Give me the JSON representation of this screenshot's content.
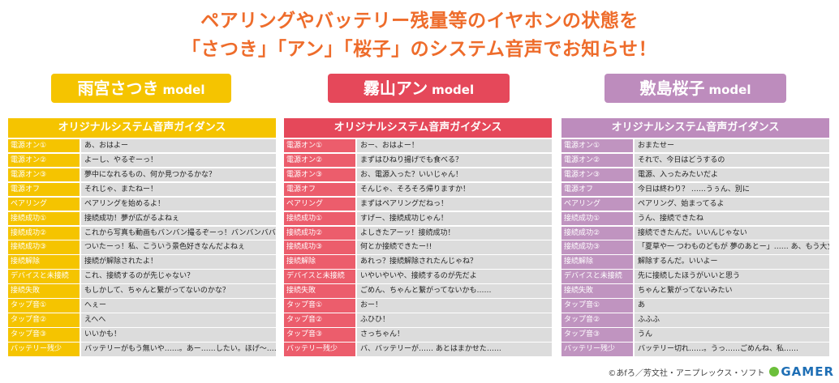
{
  "headline": {
    "line1": "ペアリングやバッテリー残量等のイヤホンの状態を",
    "line2": "「さつき」「アン」「桜子」のシステム音声でお知らせ！"
  },
  "colors": {
    "yellow": "#f5c400",
    "yellow_key": "#f5c400",
    "red": "#e5485a",
    "red_key": "#ec5d6c",
    "purple": "#bd8cbd",
    "purple_key": "#c094c0",
    "headline": "#ee6c2b"
  },
  "models": [
    {
      "name": "雨宮さつき",
      "suffix": "model",
      "table_title": "オリジナルシステム音声ガイダンス",
      "rows": [
        {
          "key": "電源オン①",
          "value": "あ、おはよー"
        },
        {
          "key": "電源オン②",
          "value": "よーし、やるぞーっ！"
        },
        {
          "key": "電源オン③",
          "value": "夢中になれるもの、何か見つかるかな？"
        },
        {
          "key": "電源オフ",
          "value": "それじゃ、またねー！"
        },
        {
          "key": "ペアリング",
          "value": "ペアリングを始めるよ！"
        },
        {
          "key": "接続成功①",
          "value": "接続成功！夢が広がるよねぇ"
        },
        {
          "key": "接続成功②",
          "value": "これから写真も動画もバンバン撮るぞーっ！バンバンババーン！"
        },
        {
          "key": "接続成功③",
          "value": "ついたーっ！私、こういう景色好きなんだよねぇ"
        },
        {
          "key": "接続解除",
          "value": "接続が解除されたよ！"
        },
        {
          "key": "デバイスと未接続",
          "value": "これ、接続するのが先じゃない？"
        },
        {
          "key": "接続失敗",
          "value": "もしかして、ちゃんと繋がってないのかな？"
        },
        {
          "key": "タップ音①",
          "value": "へぇー"
        },
        {
          "key": "タップ音②",
          "value": "えへへ"
        },
        {
          "key": "タップ音③",
          "value": "いいかも！"
        },
        {
          "key": "バッテリー残少",
          "value": "バッテリーがもう無いや……。あー……したい。ほげ〜……"
        }
      ]
    },
    {
      "name": "霧山アン",
      "suffix": "model",
      "table_title": "オリジナルシステム音声ガイダンス",
      "rows": [
        {
          "key": "電源オン①",
          "value": "おー、おはよー！"
        },
        {
          "key": "電源オン②",
          "value": "まずはひねり揚げでも食べる？"
        },
        {
          "key": "電源オン③",
          "value": "お、電源入った？いいじゃん！"
        },
        {
          "key": "電源オフ",
          "value": "そんじゃ、そろそろ帰りますか！"
        },
        {
          "key": "ペアリング",
          "value": "まずはペアリングだねっ！"
        },
        {
          "key": "接続成功①",
          "value": "すげー、接続成功じゃん！"
        },
        {
          "key": "接続成功②",
          "value": "よしきたアーッ！接続成功！"
        },
        {
          "key": "接続成功③",
          "value": "何とか接続できたー!!"
        },
        {
          "key": "接続解除",
          "value": "あれっ？接続解除されたんじゃね？"
        },
        {
          "key": "デバイスと未接続",
          "value": "いやいやいや、接続するのが先だよ"
        },
        {
          "key": "接続失敗",
          "value": "ごめん、ちゃんと繋がってないかも……"
        },
        {
          "key": "タップ音①",
          "value": "おー！"
        },
        {
          "key": "タップ音②",
          "value": "ふひひ！"
        },
        {
          "key": "タップ音③",
          "value": "さっちゃん！"
        },
        {
          "key": "バッテリー残少",
          "value": "バ、バッテリーが…… あとはまかせた……"
        }
      ]
    },
    {
      "name": "敷島桜子",
      "suffix": "model",
      "table_title": "オリジナルシステム音声ガイダンス",
      "rows": [
        {
          "key": "電源オン①",
          "value": "おまたせー"
        },
        {
          "key": "電源オン②",
          "value": "それで、今日はどうするの"
        },
        {
          "key": "電源オン③",
          "value": "電源、入ったみたいだよ"
        },
        {
          "key": "電源オフ",
          "value": "今日は終わり？ ……うぅん、別に"
        },
        {
          "key": "ペアリング",
          "value": "ペアリング、始まってるよ"
        },
        {
          "key": "接続成功①",
          "value": "うん、接続できたね"
        },
        {
          "key": "接続成功②",
          "value": "接続できたんだ。いいんじゃない"
        },
        {
          "key": "接続成功③",
          "value": "「夏草や一 つわものどもが 夢のあとー」…… あ、もう大丈夫ですー"
        },
        {
          "key": "接続解除",
          "value": "解除するんだ。いいよー"
        },
        {
          "key": "デバイスと未接続",
          "value": "先に接続したほうがいいと思う"
        },
        {
          "key": "接続失敗",
          "value": "ちゃんと繋がってないみたい"
        },
        {
          "key": "タップ音①",
          "value": "あ"
        },
        {
          "key": "タップ音②",
          "value": "ふふふ"
        },
        {
          "key": "タップ音③",
          "value": "うん"
        },
        {
          "key": "バッテリー残少",
          "value": "バッテリー切れ……。うっ……ごめんね、私……"
        }
      ]
    }
  ],
  "footer": {
    "copyright": "©あfろ／芳文社・アニプレックス・ソフト",
    "logo": "GAMER"
  }
}
